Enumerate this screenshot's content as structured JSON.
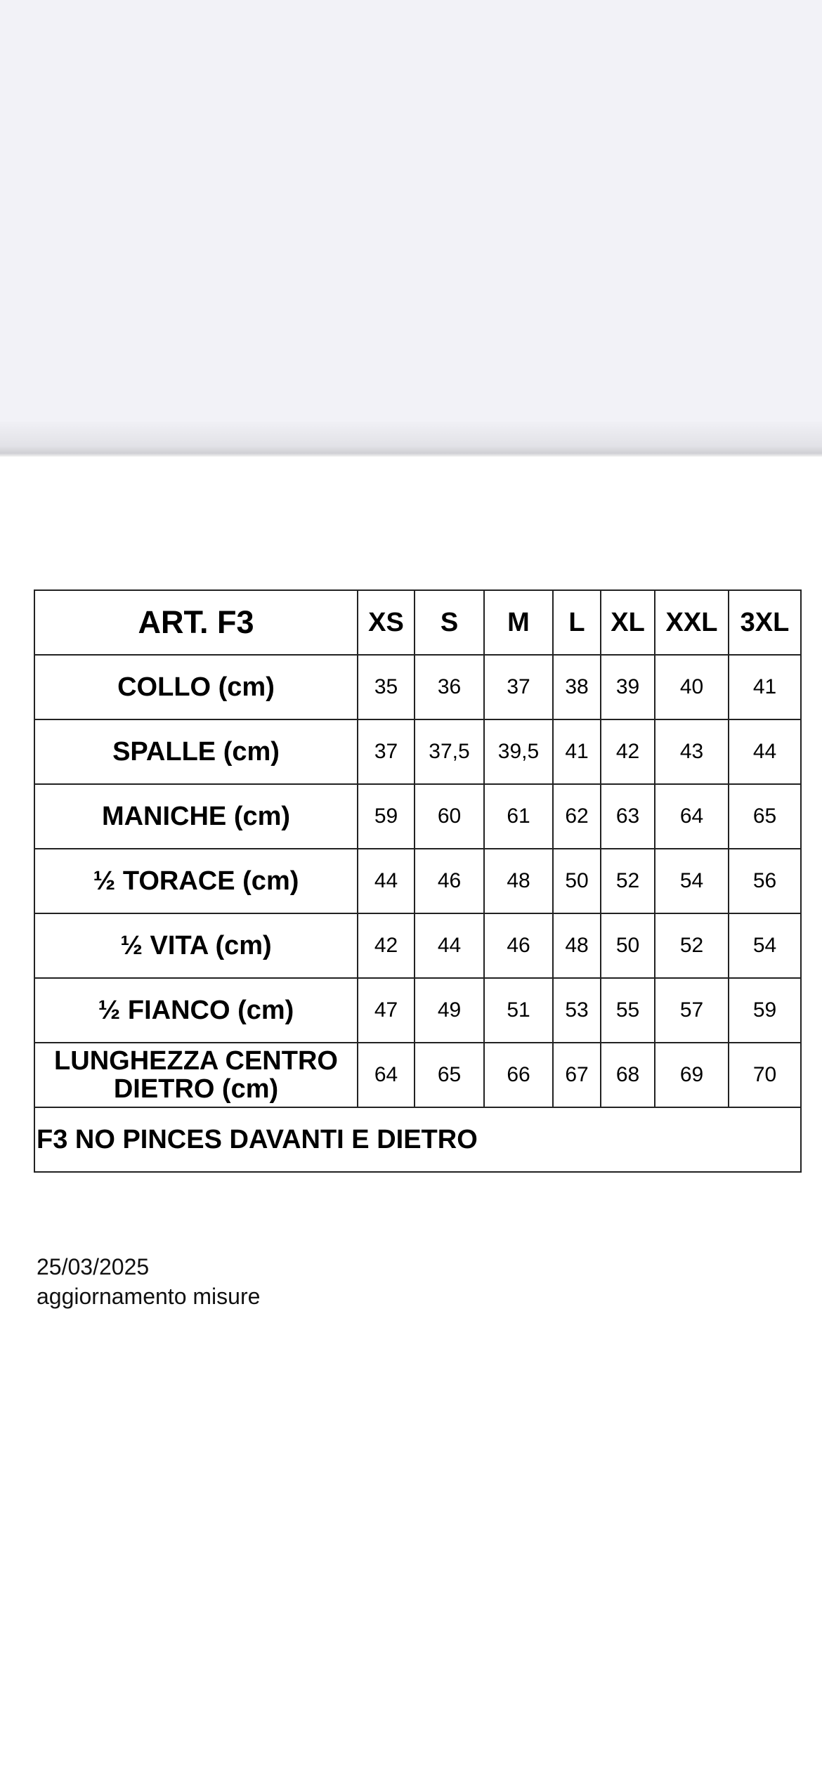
{
  "table": {
    "title": "ART. F3",
    "sizes": [
      "XS",
      "S",
      "M",
      "L",
      "XL",
      "XXL",
      "3XL"
    ],
    "rows": [
      {
        "label": "COLLO (cm)",
        "values": [
          "35",
          "36",
          "37",
          "38",
          "39",
          "40",
          "41"
        ]
      },
      {
        "label": "SPALLE (cm)",
        "values": [
          "37",
          "37,5",
          "39,5",
          "41",
          "42",
          "43",
          "44"
        ]
      },
      {
        "label": "MANICHE (cm)",
        "values": [
          "59",
          "60",
          "61",
          "62",
          "63",
          "64",
          "65"
        ]
      },
      {
        "label": "½ TORACE (cm)",
        "values": [
          "44",
          "46",
          "48",
          "50",
          "52",
          "54",
          "56"
        ]
      },
      {
        "label": "½ VITA (cm)",
        "values": [
          "42",
          "44",
          "46",
          "48",
          "50",
          "52",
          "54"
        ]
      },
      {
        "label": "½ FIANCO (cm)",
        "values": [
          "47",
          "49",
          "51",
          "53",
          "55",
          "57",
          "59"
        ]
      },
      {
        "label": "LUNGHEZZA CENTRO DIETRO (cm)",
        "values": [
          "64",
          "65",
          "66",
          "67",
          "68",
          "69",
          "70"
        ]
      }
    ],
    "note": "F3 NO PINCES DAVANTI E DIETRO"
  },
  "footer": {
    "date": "25/03/2025",
    "text": "aggiornamento misure"
  }
}
